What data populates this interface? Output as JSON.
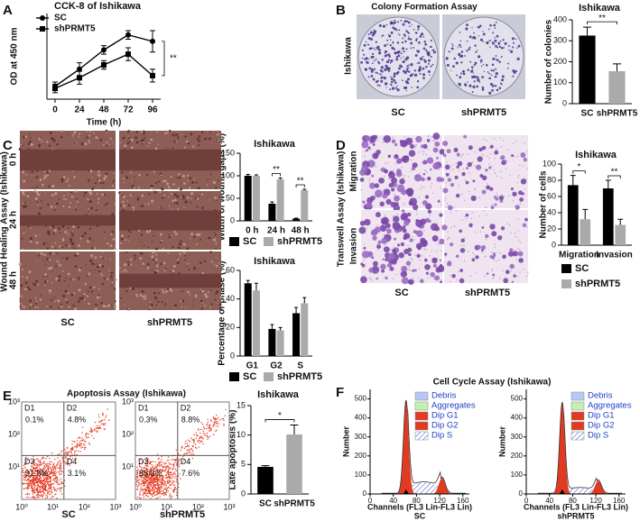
{
  "panel_labels": [
    "A",
    "B",
    "C",
    "D",
    "E",
    "F"
  ],
  "chart_data": [
    {
      "type": "line",
      "title": "CCK-8 of Ishikawa",
      "x_label": "Time (h)",
      "y_label": "OD at 450 nm",
      "x": [
        0,
        24,
        48,
        72,
        96
      ],
      "xlim": [
        -8,
        104
      ],
      "xticks": [
        0,
        24,
        48,
        72,
        96
      ],
      "ylim": [
        0.2,
        0.6
      ],
      "series": [
        {
          "name": "SC",
          "color": "#000000",
          "values": [
            0.26,
            0.34,
            0.43,
            0.5,
            0.47
          ],
          "errors": [
            0.02,
            0.03,
            0.02,
            0.02,
            0.05
          ]
        },
        {
          "name": "shPRMT5",
          "color": "#000000",
          "values": [
            0.25,
            0.3,
            0.36,
            0.41,
            0.31
          ],
          "errors": [
            0.02,
            0.03,
            0.02,
            0.03,
            0.03
          ]
        }
      ],
      "annotations": [
        "**"
      ]
    },
    {
      "type": "bar",
      "title": "Ishikawa",
      "y_label": "Number of colonies",
      "categories": [
        "SC",
        "shPRMT5"
      ],
      "values": [
        325,
        155
      ],
      "errors": [
        40,
        35
      ],
      "colors": [
        "#000000",
        "#aaaaaa"
      ],
      "ylim": [
        0,
        400
      ],
      "yticks": [
        0,
        100,
        200,
        300,
        400
      ],
      "annotations": [
        "**"
      ]
    },
    {
      "type": "bar",
      "title": "Ishikawa",
      "y_label": "Width of wound gaps (%)",
      "categories": [
        "0 h",
        "24 h",
        "48 h"
      ],
      "series": [
        {
          "name": "SC",
          "color": "#000000",
          "values": [
            100,
            38,
            5
          ],
          "errors": [
            3,
            4,
            1
          ]
        },
        {
          "name": "shPRMT5",
          "color": "#aaaaaa",
          "values": [
            100,
            92,
            68
          ],
          "errors": [
            2,
            3,
            2
          ]
        }
      ],
      "ylim": [
        0,
        150
      ],
      "yticks": [
        0,
        50,
        100,
        150
      ],
      "annotations": [
        "**",
        "**"
      ]
    },
    {
      "type": "bar",
      "title": "Ishikawa",
      "y_label": "Percentage of phase (%)",
      "categories": [
        "G1",
        "G2",
        "S"
      ],
      "series": [
        {
          "name": "SC",
          "color": "#000000",
          "values": [
            51,
            19,
            30
          ],
          "errors": [
            2,
            3,
            4
          ]
        },
        {
          "name": "shPRMT5",
          "color": "#aaaaaa",
          "values": [
            46,
            18,
            37
          ],
          "errors": [
            5,
            2,
            4
          ]
        }
      ],
      "ylim": [
        0,
        60
      ],
      "yticks": [
        0,
        20,
        40,
        60
      ]
    },
    {
      "type": "bar",
      "title": "Ishikawa",
      "y_label": "Number of cells",
      "categories": [
        "Migration",
        "Invasion"
      ],
      "series": [
        {
          "name": "SC",
          "color": "#000000",
          "values": [
            74,
            70
          ],
          "errors": [
            12,
            10
          ]
        },
        {
          "name": "shPRMT5",
          "color": "#aaaaaa",
          "values": [
            32,
            25
          ],
          "errors": [
            12,
            7
          ]
        }
      ],
      "ylim": [
        0,
        100
      ],
      "yticks": [
        0,
        20,
        40,
        60,
        80,
        100
      ],
      "annotations": [
        "*",
        "**"
      ]
    },
    {
      "type": "bar",
      "title": "Ishikawa",
      "y_label": "Late apoptosis (%)",
      "categories": [
        "SC",
        "shPRMT5"
      ],
      "values": [
        4.6,
        10.1
      ],
      "errors": [
        0.2,
        1.6
      ],
      "colors": [
        "#000000",
        "#aaaaaa"
      ],
      "ylim": [
        0,
        15
      ],
      "yticks": [
        0,
        5,
        10,
        15
      ],
      "annotations": [
        "*"
      ]
    }
  ],
  "colony": {
    "title": "Colony Formation Assay",
    "cell_line": "Ishikawa",
    "samples": [
      "SC",
      "shPRMT5"
    ]
  },
  "wound": {
    "title": "Wound Healing Assay (Ishikawa)",
    "times": [
      "0 h",
      "24 h",
      "48 h"
    ],
    "samples": [
      "SC",
      "shPRMT5"
    ]
  },
  "transwell": {
    "title": "Transwell Assay (Ishikawa)",
    "rows": [
      "Migration",
      "Invasion"
    ],
    "samples": [
      "SC",
      "shPRMT5"
    ]
  },
  "apoptosis": {
    "title": "Apoptosis Assay (Ishikawa)",
    "axis_ticks": [
      "10⁰",
      "10¹",
      "10²",
      "10³"
    ],
    "samples": [
      {
        "name": "SC",
        "quadrants": [
          {
            "label": "D1",
            "percent": "0.1%"
          },
          {
            "label": "D2",
            "percent": "4.8%"
          },
          {
            "label": "D3",
            "percent": "91.9%"
          },
          {
            "label": "D4",
            "percent": "3.1%"
          }
        ]
      },
      {
        "name": "shPRMT5",
        "quadrants": [
          {
            "label": "D1",
            "percent": "0.3%"
          },
          {
            "label": "D2",
            "percent": "8.8%"
          },
          {
            "label": "D3",
            "percent": "83.3%"
          },
          {
            "label": "D4",
            "percent": "7.6%"
          }
        ]
      }
    ]
  },
  "cell_cycle": {
    "title": "Cell Cycle Assay (Ishikawa)",
    "y_label": "Number",
    "x_label": "Channels (FL3 Lin-FL3 Lin)",
    "yticks": [
      0,
      100,
      200,
      300,
      400,
      500
    ],
    "xticks": [
      0,
      40,
      80,
      120,
      160
    ],
    "legend": [
      "Debris",
      "Aggregates",
      "Dip G1",
      "Dip G2",
      "Dip S"
    ],
    "samples": [
      "SC",
      "shPRMT5"
    ]
  }
}
